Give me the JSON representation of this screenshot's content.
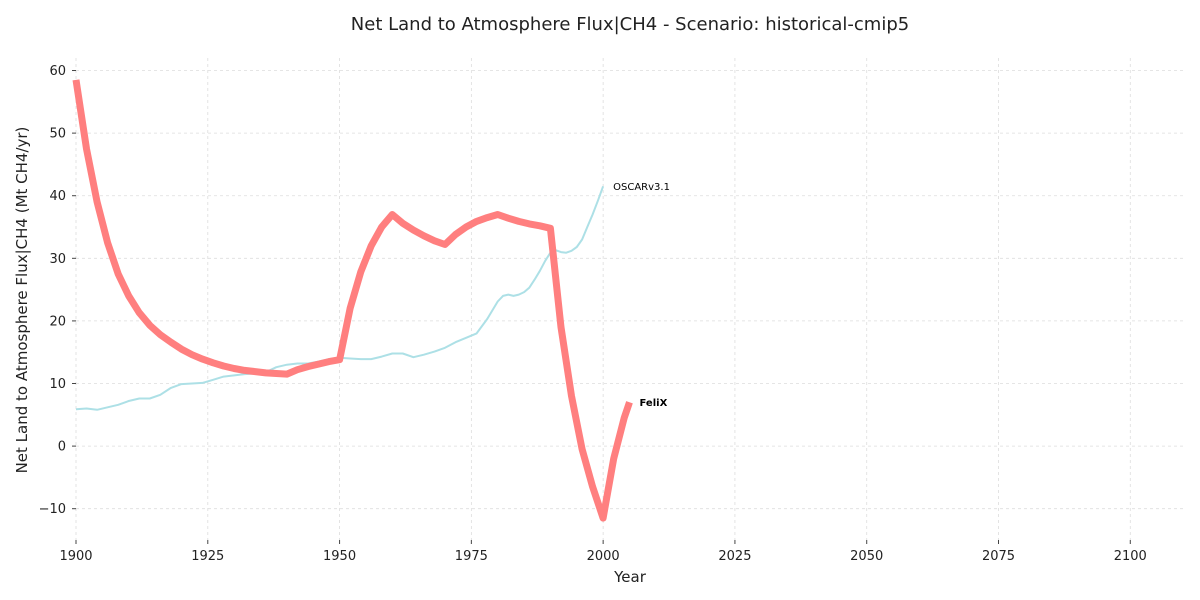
{
  "chart_data": {
    "type": "line",
    "title": "Net Land to Atmosphere Flux|CH4 - Scenario: historical-cmip5",
    "xlabel": "Year",
    "ylabel": "Net Land to Atmosphere Flux|CH4 (Mt CH4/yr)",
    "xlim": [
      1900,
      2110
    ],
    "ylim": [
      -15,
      62
    ],
    "xticks": [
      1900,
      1925,
      1950,
      1975,
      2000,
      2025,
      2050,
      2075,
      2100
    ],
    "yticks": [
      -10,
      0,
      10,
      20,
      30,
      40,
      50,
      60
    ],
    "grid": true,
    "series": [
      {
        "name": "OSCARv3.1",
        "color": "#ade0e6",
        "line_width": "thin",
        "x": [
          1900,
          1902,
          1904,
          1906,
          1908,
          1910,
          1912,
          1914,
          1916,
          1918,
          1920,
          1922,
          1924,
          1926,
          1928,
          1930,
          1932,
          1934,
          1936,
          1938,
          1940,
          1942,
          1944,
          1946,
          1948,
          1950,
          1952,
          1954,
          1956,
          1958,
          1960,
          1962,
          1964,
          1966,
          1968,
          1970,
          1972,
          1974,
          1976,
          1978,
          1980,
          1981,
          1982,
          1983,
          1984,
          1985,
          1986,
          1987,
          1988,
          1989,
          1990,
          1991,
          1992,
          1993,
          1994,
          1995,
          1996,
          1997,
          1998,
          1999,
          2000
        ],
        "y": [
          5.9,
          6.0,
          5.8,
          6.2,
          6.6,
          7.2,
          7.6,
          7.6,
          8.2,
          9.3,
          9.9,
          10.0,
          10.1,
          10.6,
          11.1,
          11.3,
          11.5,
          11.6,
          11.8,
          12.6,
          13.0,
          13.2,
          13.2,
          13.5,
          13.9,
          14.1,
          14.0,
          13.9,
          13.9,
          14.3,
          14.8,
          14.8,
          14.2,
          14.6,
          15.1,
          15.7,
          16.6,
          17.3,
          18.0,
          20.3,
          23.1,
          24.0,
          24.2,
          24.0,
          24.2,
          24.6,
          25.3,
          26.6,
          28.0,
          29.6,
          30.9,
          31.3,
          31.0,
          30.9,
          31.2,
          31.8,
          33.0,
          35.0,
          37.0,
          39.2,
          41.5
        ]
      },
      {
        "name": "FeliX",
        "color": "#ff7f7f",
        "line_width": "thick",
        "x": [
          1900,
          1902,
          1904,
          1906,
          1908,
          1910,
          1912,
          1914,
          1916,
          1918,
          1920,
          1922,
          1924,
          1926,
          1928,
          1930,
          1932,
          1934,
          1936,
          1938,
          1940,
          1942,
          1944,
          1946,
          1948,
          1950,
          1952,
          1954,
          1956,
          1958,
          1960,
          1962,
          1964,
          1966,
          1968,
          1970,
          1972,
          1974,
          1976,
          1978,
          1980,
          1982,
          1984,
          1986,
          1988,
          1990,
          1992,
          1994,
          1996,
          1998,
          2000,
          2002,
          2004,
          2005
        ],
        "y": [
          58.5,
          47.5,
          39.0,
          32.5,
          27.5,
          24.0,
          21.3,
          19.3,
          17.8,
          16.6,
          15.5,
          14.6,
          13.9,
          13.3,
          12.8,
          12.4,
          12.1,
          11.9,
          11.7,
          11.6,
          11.5,
          12.2,
          12.7,
          13.1,
          13.5,
          13.8,
          22.0,
          27.8,
          32.0,
          35.0,
          37.0,
          35.6,
          34.5,
          33.6,
          32.8,
          32.2,
          33.8,
          35.0,
          35.9,
          36.5,
          37.0,
          36.4,
          35.9,
          35.5,
          35.2,
          34.8,
          19.0,
          8.0,
          -0.5,
          -6.5,
          -11.5,
          -2.0,
          4.5,
          7.0
        ]
      }
    ]
  }
}
